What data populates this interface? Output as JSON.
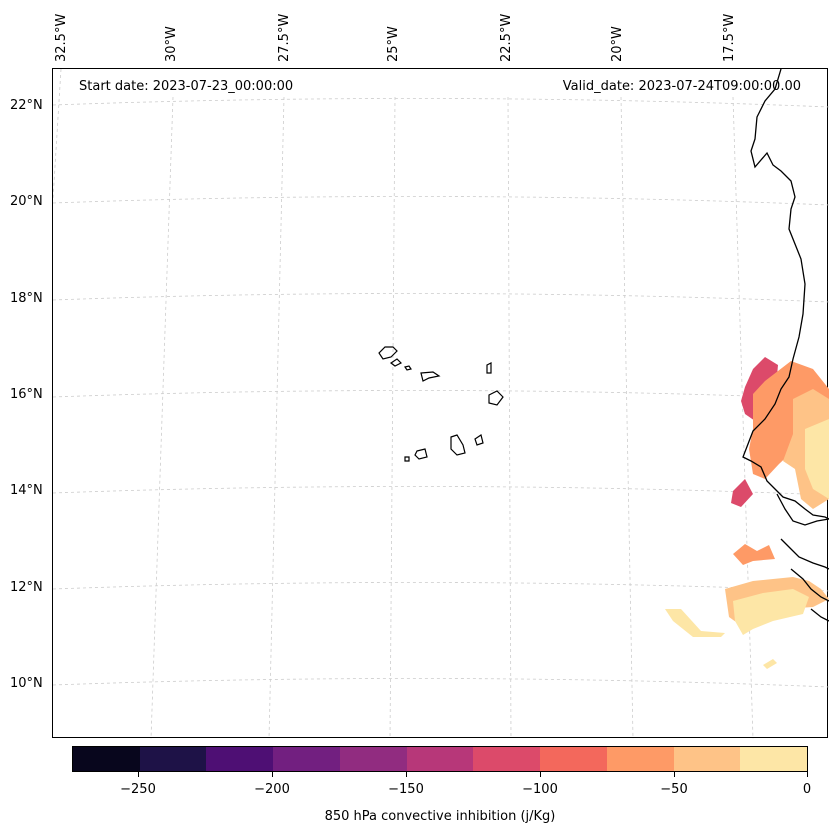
{
  "header": {
    "start_date": "Start date: 2023-07-23_00:00:00",
    "valid_date": "Valid_date: 2023-07-24T09:00:00.00"
  },
  "axes": {
    "lon_labels": [
      "32.5°W",
      "30°W",
      "27.5°W",
      "25°W",
      "22.5°W",
      "20°W",
      "17.5°W"
    ],
    "lat_labels": [
      "22°N",
      "20°N",
      "18°N",
      "16°N",
      "14°N",
      "12°N",
      "10°N"
    ]
  },
  "colorbar": {
    "label": "850 hPa convective inhibition (j/Kg)",
    "ticks": [
      "−250",
      "−200",
      "−150",
      "−100",
      "−50",
      "0"
    ],
    "colors": [
      "#08061d",
      "#1e1247",
      "#4e0f74",
      "#721f80",
      "#912c80",
      "#b73779",
      "#dc4a6a",
      "#f3685c",
      "#fe9a66",
      "#fec387",
      "#fde6a6"
    ]
  },
  "legend_colors": {
    "coast": "#000000",
    "grid": "#cccccc"
  }
}
